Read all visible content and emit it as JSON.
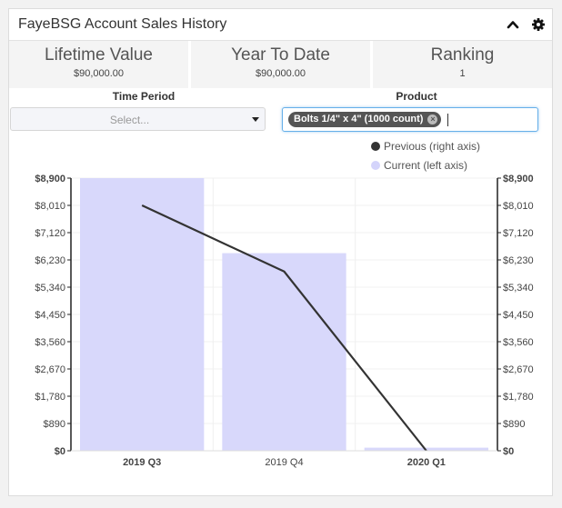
{
  "header": {
    "title": "FayeBSG Account Sales History",
    "collapse_icon": "chevron-up-icon",
    "settings_icon": "gear-icon"
  },
  "stats": [
    {
      "label": "Lifetime Value",
      "value": "$90,000.00"
    },
    {
      "label": "Year To Date",
      "value": "$90,000.00"
    },
    {
      "label": "Ranking",
      "value": "1"
    }
  ],
  "filters": {
    "time_period": {
      "label": "Time Period",
      "placeholder": "Select..."
    },
    "product": {
      "label": "Product",
      "selected_tag": "Bolts 1/4\" x 4\" (1000 count)"
    }
  },
  "legend": [
    {
      "label": "Previous (right axis)",
      "color": "#333333"
    },
    {
      "label": "Current (left axis)",
      "color": "#d4d4fb"
    }
  ],
  "chart_data": {
    "type": "bar",
    "categories": [
      "2019 Q3",
      "2019 Q4",
      "2020 Q1"
    ],
    "series": [
      {
        "name": "Current (left axis)",
        "type": "bar",
        "axis": "left",
        "values": [
          8900,
          6450,
          100
        ],
        "color": "#d8d8fb"
      },
      {
        "name": "Previous (right axis)",
        "type": "line",
        "axis": "right",
        "values": [
          8010,
          5850,
          0
        ],
        "color": "#333333"
      }
    ],
    "yticks": [
      "$0",
      "$890",
      "$1,780",
      "$2,670",
      "$3,560",
      "$4,450",
      "$5,340",
      "$6,230",
      "$7,120",
      "$8,010",
      "$8,900"
    ],
    "ylim": [
      0,
      8900
    ],
    "grid": true,
    "legend_position": "top-right"
  }
}
